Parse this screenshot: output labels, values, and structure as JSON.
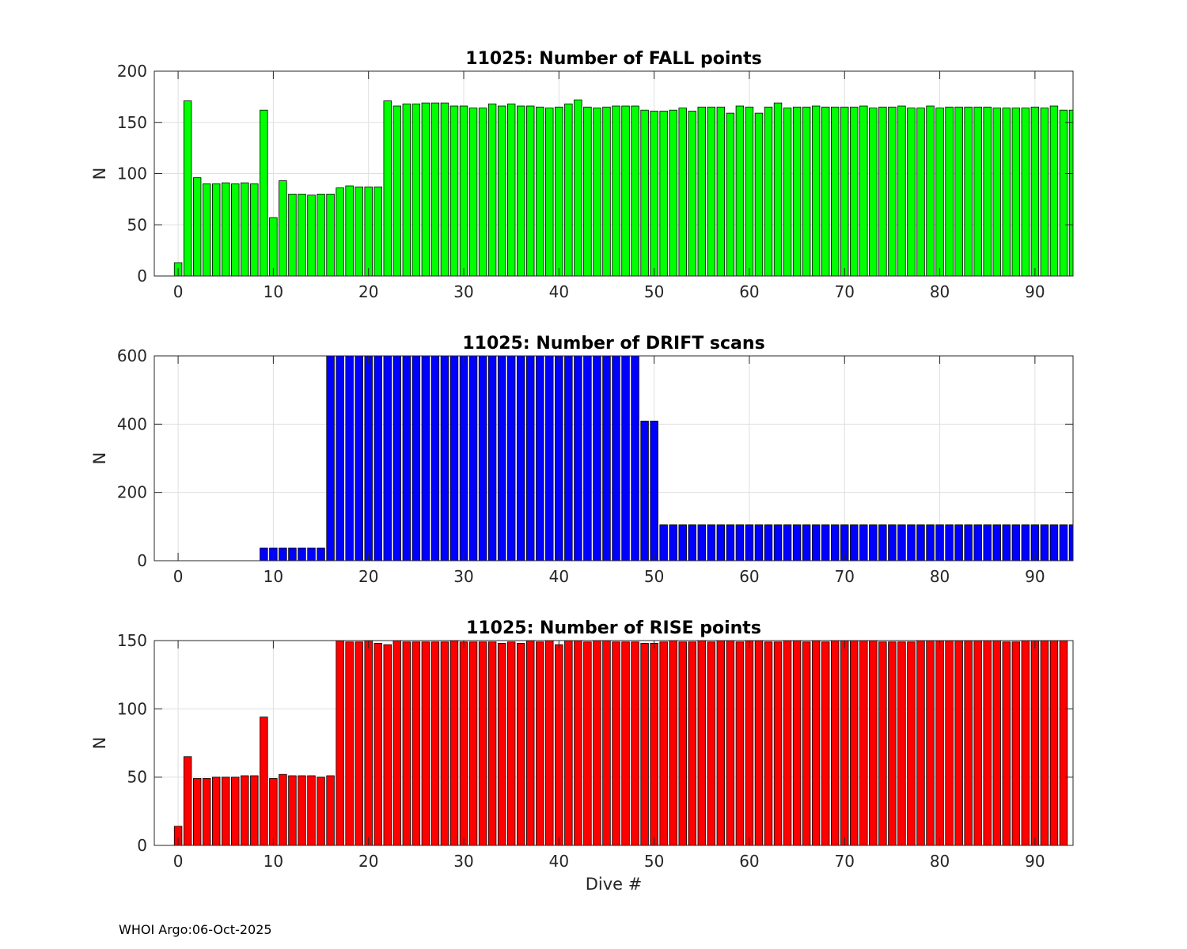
{
  "footer": {
    "text": "WHOI Argo:06-Oct-2025"
  },
  "chart_data": [
    {
      "type": "bar",
      "title": "11025: Number of FALL points",
      "xlabel": "",
      "ylabel": "N",
      "color": "#00ff00",
      "xlim": [
        -2.5,
        94
      ],
      "ylim": [
        0,
        200
      ],
      "xticks": [
        0,
        10,
        20,
        30,
        40,
        50,
        60,
        70,
        80,
        90
      ],
      "yticks": [
        0,
        50,
        100,
        150,
        200
      ],
      "grid": true,
      "x_start": 0,
      "values": [
        13,
        171,
        96,
        90,
        90,
        91,
        90,
        91,
        90,
        162,
        57,
        93,
        80,
        80,
        79,
        80,
        80,
        86,
        88,
        87,
        87,
        87,
        171,
        166,
        168,
        168,
        169,
        169,
        169,
        166,
        166,
        164,
        164,
        168,
        166,
        168,
        166,
        166,
        165,
        164,
        165,
        168,
        172,
        165,
        164,
        165,
        166,
        166,
        166,
        162,
        161,
        161,
        162,
        164,
        161,
        165,
        165,
        165,
        159,
        166,
        165,
        159,
        165,
        169,
        164,
        165,
        165,
        166,
        165,
        165,
        165,
        165,
        166,
        164,
        165,
        165,
        166,
        164,
        164,
        166,
        164,
        165,
        165,
        165,
        165,
        165,
        164,
        164,
        164,
        164,
        165,
        164,
        166,
        162,
        162
      ]
    },
    {
      "type": "bar",
      "title": "11025: Number of DRIFT scans",
      "xlabel": "",
      "ylabel": "N",
      "color": "#0000ff",
      "xlim": [
        -2.5,
        94
      ],
      "ylim": [
        0,
        600
      ],
      "xticks": [
        0,
        10,
        20,
        30,
        40,
        50,
        60,
        70,
        80,
        90
      ],
      "yticks": [
        0,
        200,
        400,
        600
      ],
      "grid": true,
      "x_start": 0,
      "values": [
        0,
        0,
        0,
        0,
        0,
        0,
        0,
        0,
        0,
        37,
        37,
        37,
        37,
        37,
        37,
        37,
        600,
        600,
        600,
        600,
        600,
        600,
        600,
        600,
        600,
        600,
        600,
        600,
        600,
        600,
        600,
        600,
        600,
        600,
        600,
        600,
        600,
        600,
        600,
        600,
        600,
        600,
        600,
        600,
        600,
        600,
        600,
        600,
        600,
        409,
        409,
        105,
        105,
        105,
        105,
        105,
        105,
        105,
        105,
        105,
        105,
        105,
        105,
        105,
        105,
        105,
        105,
        105,
        105,
        105,
        105,
        105,
        105,
        105,
        105,
        105,
        105,
        105,
        105,
        105,
        105,
        105,
        105,
        105,
        105,
        105,
        105,
        105,
        105,
        105,
        105,
        105,
        105,
        105,
        105
      ]
    },
    {
      "type": "bar",
      "title": "11025: Number of RISE points",
      "xlabel": "Dive #",
      "ylabel": "N",
      "color": "#ff0000",
      "xlim": [
        -2.5,
        94
      ],
      "ylim": [
        0,
        150
      ],
      "xticks": [
        0,
        10,
        20,
        30,
        40,
        50,
        60,
        70,
        80,
        90
      ],
      "yticks": [
        0,
        50,
        100,
        150
      ],
      "grid": true,
      "x_start": 0,
      "values": [
        14,
        65,
        49,
        49,
        50,
        50,
        50,
        51,
        51,
        94,
        49,
        52,
        51,
        51,
        51,
        50,
        51,
        150,
        149,
        149,
        150,
        148,
        147,
        150,
        149,
        149,
        149,
        149,
        149,
        150,
        149,
        149,
        149,
        149,
        148,
        149,
        148,
        150,
        149,
        150,
        147,
        150,
        150,
        149,
        150,
        150,
        149,
        149,
        149,
        148,
        148,
        149,
        150,
        149,
        149,
        150,
        149,
        150,
        150,
        149,
        150,
        150,
        149,
        149,
        150,
        150,
        149,
        150,
        149,
        150,
        150,
        150,
        150,
        150,
        149,
        149,
        149,
        149,
        150,
        150,
        150,
        150,
        150,
        150,
        150,
        150,
        150,
        149,
        149,
        150,
        150,
        150,
        150,
        150
      ]
    }
  ]
}
